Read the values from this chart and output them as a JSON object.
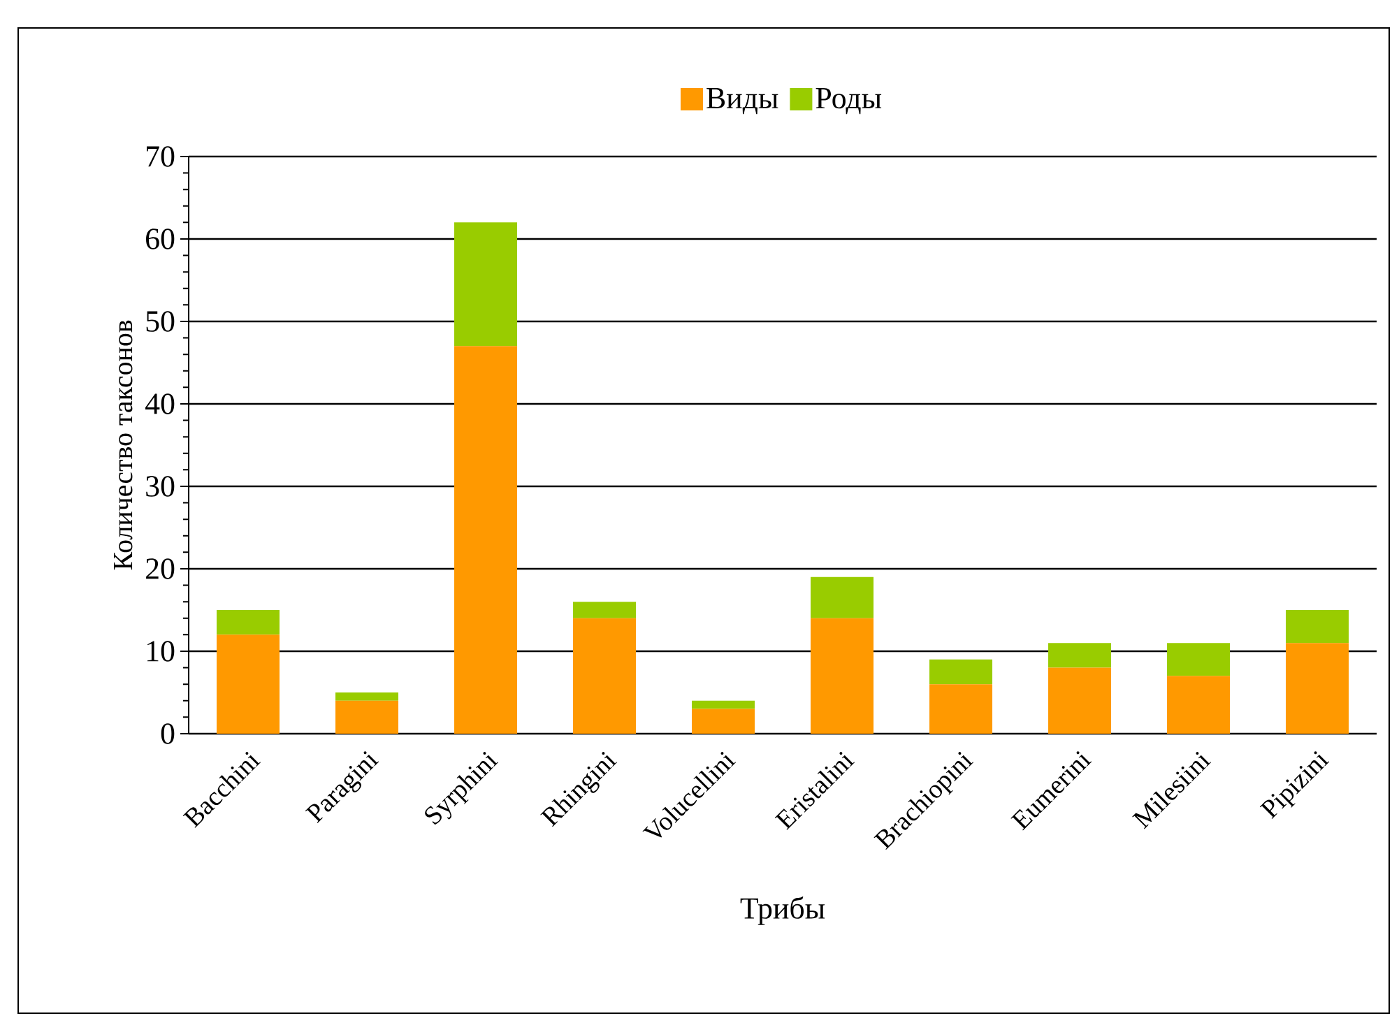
{
  "chart_data": {
    "type": "bar",
    "stacked": true,
    "xlabel": "Трибы",
    "ylabel": "Количество таксонов",
    "categories": [
      "Bacchini",
      "Paragini",
      "Syrphini",
      "Rhingini",
      "Volucellini",
      "Eristalini",
      "Brachiopini",
      "Eumerini",
      "Milesiini",
      "Pipizini"
    ],
    "series": [
      {
        "name": "Виды",
        "color": "#ff9900",
        "values": [
          12,
          4,
          47,
          14,
          3,
          14,
          6,
          8,
          7,
          11
        ]
      },
      {
        "name": "Роды",
        "color": "#99cc00",
        "values": [
          3,
          1,
          15,
          2,
          1,
          5,
          3,
          3,
          4,
          4
        ]
      }
    ],
    "ylim": [
      0,
      70
    ],
    "yticks": [
      0,
      10,
      20,
      30,
      40,
      50,
      60,
      70
    ],
    "grid": "y",
    "legend": "top"
  }
}
